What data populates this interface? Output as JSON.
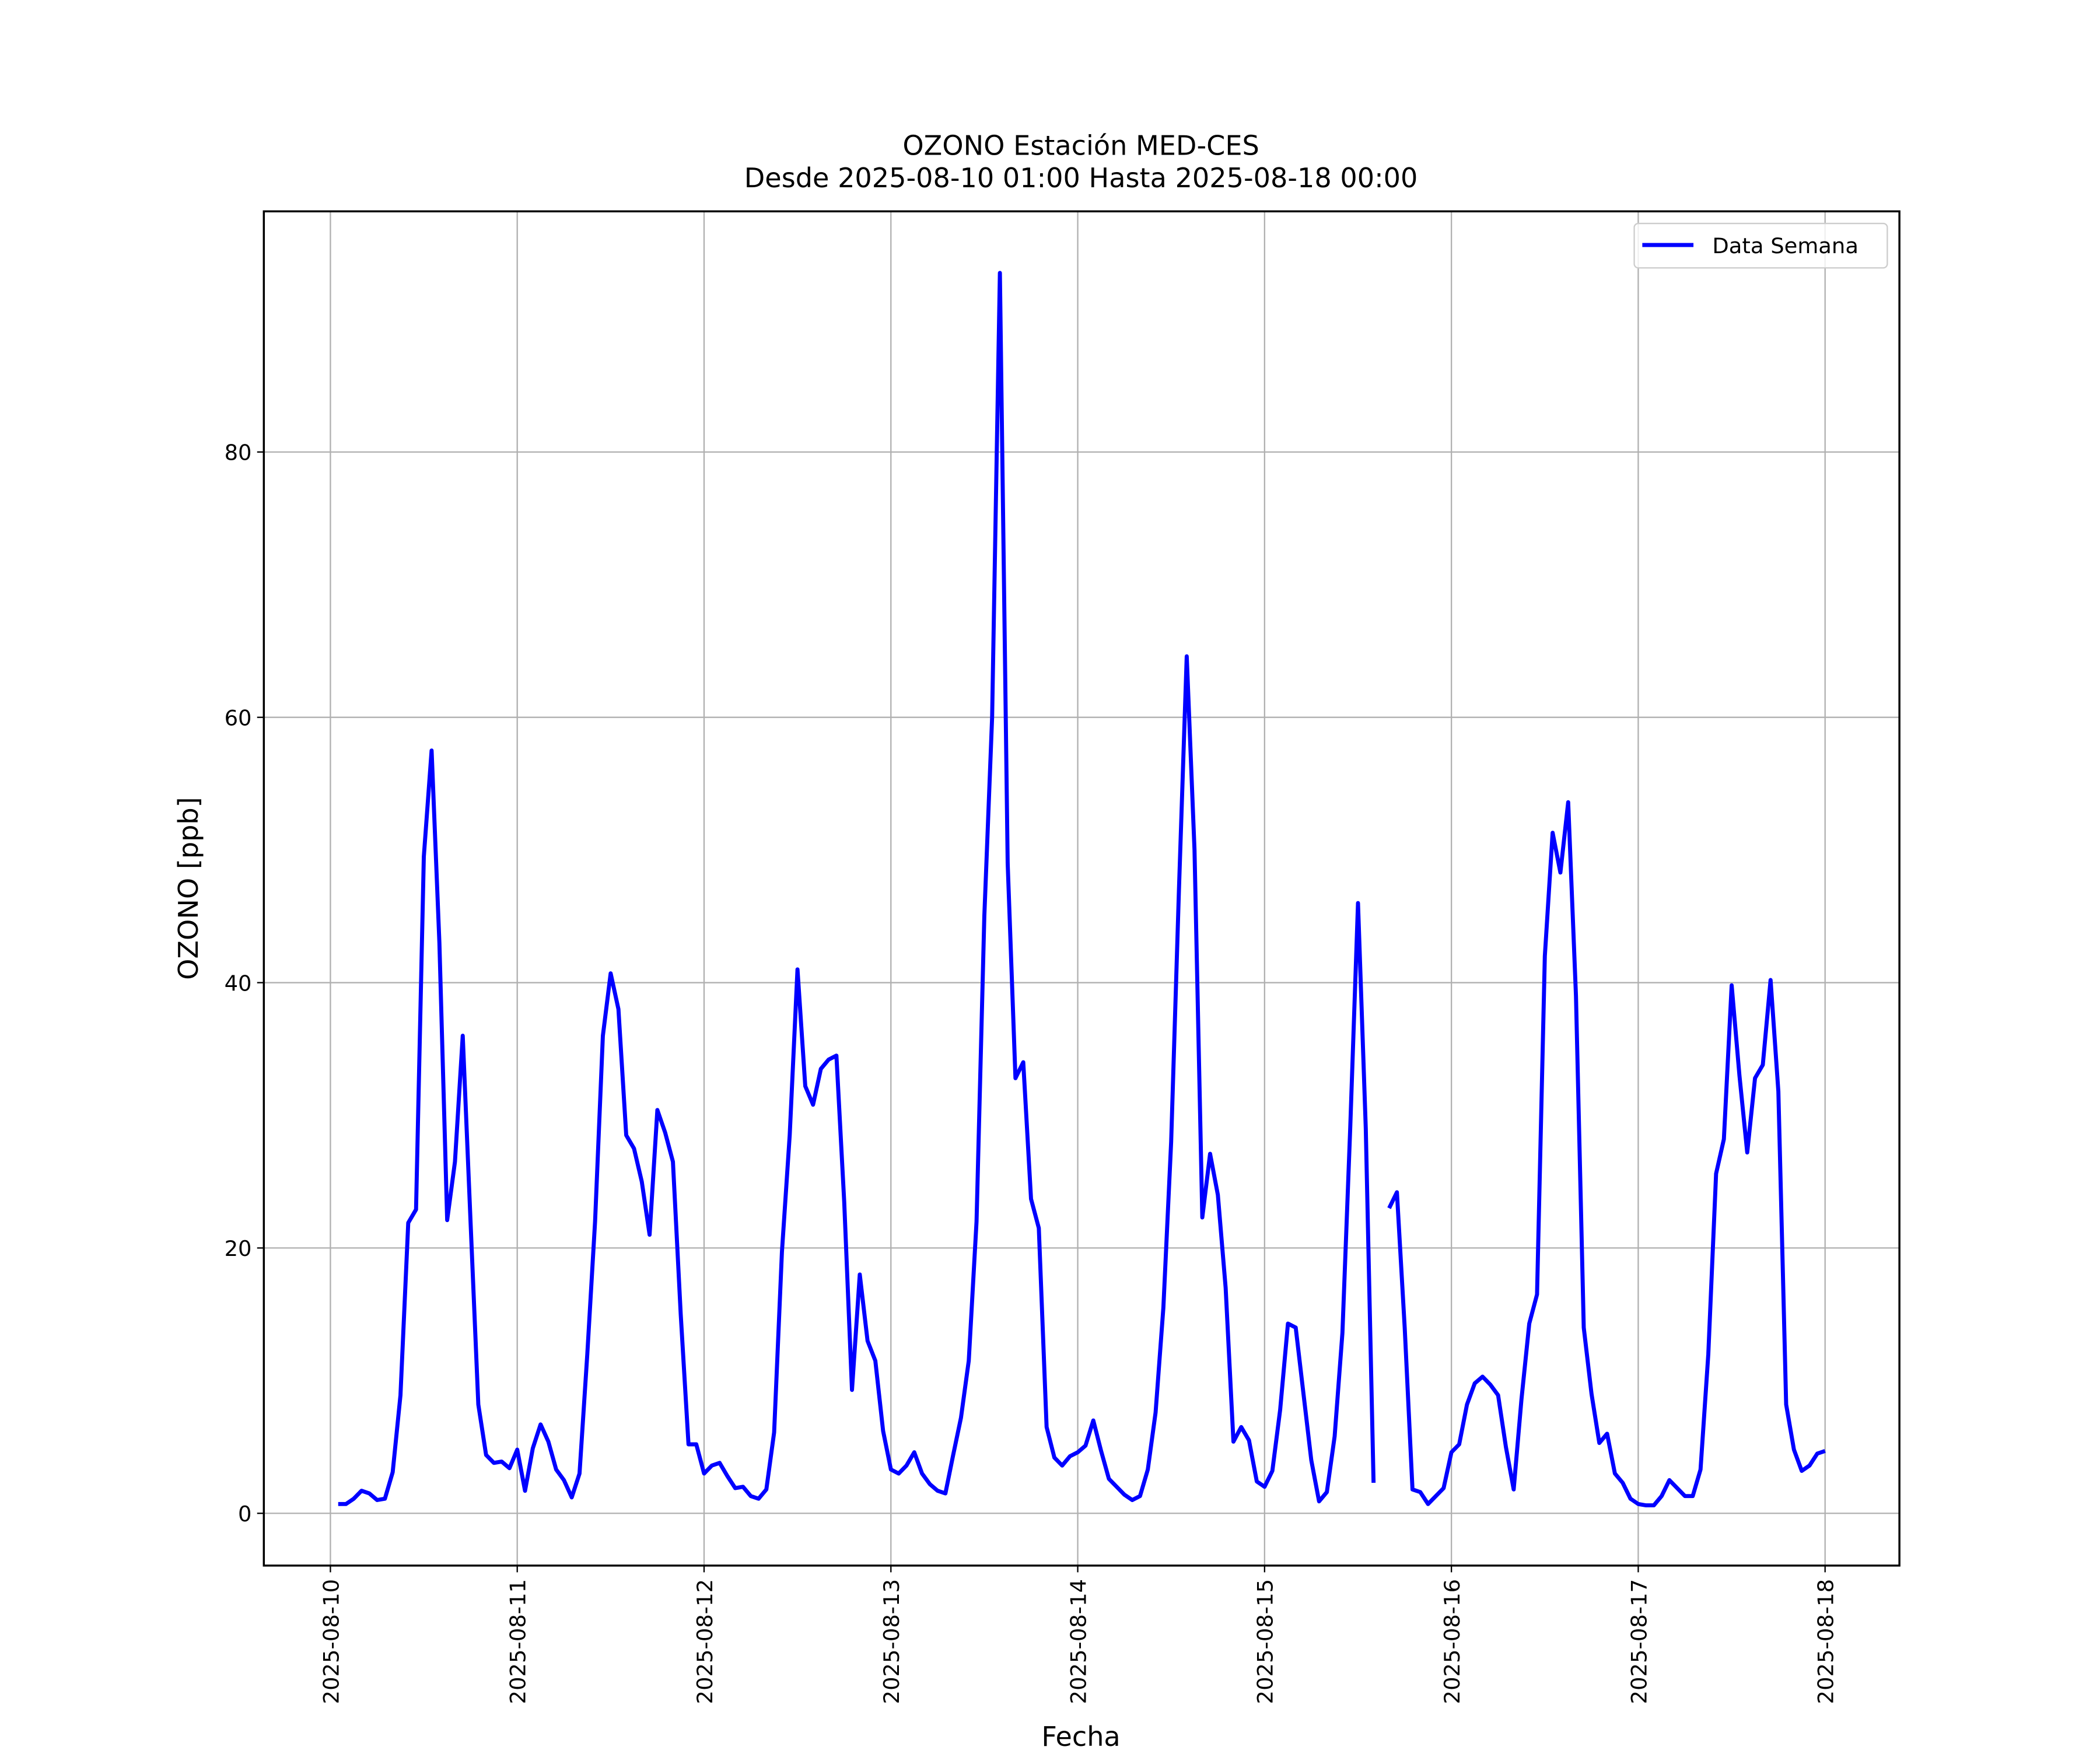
{
  "chart_data": {
    "type": "line",
    "title": "OZONO Estación MED-CES",
    "subtitle": "Desde 2025-08-10 01:00 Hasta 2025-08-18 00:00",
    "xlabel": "Fecha",
    "ylabel": "OZONO [ppb]",
    "x": [
      "2025-08-10 01:00",
      "2025-08-10 02:00",
      "2025-08-10 03:00",
      "2025-08-10 04:00",
      "2025-08-10 05:00",
      "2025-08-10 06:00",
      "2025-08-10 07:00",
      "2025-08-10 08:00",
      "2025-08-10 09:00",
      "2025-08-10 10:00",
      "2025-08-10 11:00",
      "2025-08-10 12:00",
      "2025-08-10 13:00",
      "2025-08-10 14:00",
      "2025-08-10 15:00",
      "2025-08-10 16:00",
      "2025-08-10 17:00",
      "2025-08-10 18:00",
      "2025-08-10 19:00",
      "2025-08-10 20:00",
      "2025-08-10 21:00",
      "2025-08-10 22:00",
      "2025-08-10 23:00",
      "2025-08-11 00:00",
      "2025-08-11 01:00",
      "2025-08-11 02:00",
      "2025-08-11 03:00",
      "2025-08-11 04:00",
      "2025-08-11 05:00",
      "2025-08-11 06:00",
      "2025-08-11 07:00",
      "2025-08-11 08:00",
      "2025-08-11 09:00",
      "2025-08-11 10:00",
      "2025-08-11 11:00",
      "2025-08-11 12:00",
      "2025-08-11 13:00",
      "2025-08-11 14:00",
      "2025-08-11 15:00",
      "2025-08-11 16:00",
      "2025-08-11 17:00",
      "2025-08-11 18:00",
      "2025-08-11 19:00",
      "2025-08-11 20:00",
      "2025-08-11 21:00",
      "2025-08-11 22:00",
      "2025-08-11 23:00",
      "2025-08-12 00:00",
      "2025-08-12 01:00",
      "2025-08-12 02:00",
      "2025-08-12 03:00",
      "2025-08-12 04:00",
      "2025-08-12 05:00",
      "2025-08-12 06:00",
      "2025-08-12 07:00",
      "2025-08-12 08:00",
      "2025-08-12 09:00",
      "2025-08-12 10:00",
      "2025-08-12 11:00",
      "2025-08-12 12:00",
      "2025-08-12 13:00",
      "2025-08-12 14:00",
      "2025-08-12 15:00",
      "2025-08-12 16:00",
      "2025-08-12 17:00",
      "2025-08-12 18:00",
      "2025-08-12 19:00",
      "2025-08-12 20:00",
      "2025-08-12 21:00",
      "2025-08-12 22:00",
      "2025-08-12 23:00",
      "2025-08-13 00:00",
      "2025-08-13 01:00",
      "2025-08-13 02:00",
      "2025-08-13 03:00",
      "2025-08-13 04:00",
      "2025-08-13 05:00",
      "2025-08-13 06:00",
      "2025-08-13 07:00",
      "2025-08-13 08:00",
      "2025-08-13 09:00",
      "2025-08-13 10:00",
      "2025-08-13 11:00",
      "2025-08-13 12:00",
      "2025-08-13 13:00",
      "2025-08-13 14:00",
      "2025-08-13 15:00",
      "2025-08-13 16:00",
      "2025-08-13 17:00",
      "2025-08-13 18:00",
      "2025-08-13 19:00",
      "2025-08-13 20:00",
      "2025-08-13 21:00",
      "2025-08-13 22:00",
      "2025-08-13 23:00",
      "2025-08-14 00:00",
      "2025-08-14 01:00",
      "2025-08-14 02:00",
      "2025-08-14 03:00",
      "2025-08-14 04:00",
      "2025-08-14 05:00",
      "2025-08-14 06:00",
      "2025-08-14 07:00",
      "2025-08-14 08:00",
      "2025-08-14 09:00",
      "2025-08-14 10:00",
      "2025-08-14 11:00",
      "2025-08-14 12:00",
      "2025-08-14 13:00",
      "2025-08-14 14:00",
      "2025-08-14 15:00",
      "2025-08-14 16:00",
      "2025-08-14 17:00",
      "2025-08-14 18:00",
      "2025-08-14 19:00",
      "2025-08-14 20:00",
      "2025-08-14 21:00",
      "2025-08-14 22:00",
      "2025-08-14 23:00",
      "2025-08-15 00:00",
      "2025-08-15 01:00",
      "2025-08-15 02:00",
      "2025-08-15 03:00",
      "2025-08-15 04:00",
      "2025-08-15 05:00",
      "2025-08-15 06:00",
      "2025-08-15 07:00",
      "2025-08-15 08:00",
      "2025-08-15 09:00",
      "2025-08-15 10:00",
      "2025-08-15 11:00",
      "2025-08-15 12:00",
      "2025-08-15 13:00",
      "2025-08-15 14:00",
      "2025-08-15 15:00",
      "2025-08-15 16:00",
      "2025-08-15 17:00",
      "2025-08-15 18:00",
      "2025-08-15 19:00",
      "2025-08-15 20:00",
      "2025-08-15 21:00",
      "2025-08-15 22:00",
      "2025-08-15 23:00",
      "2025-08-16 00:00",
      "2025-08-16 01:00",
      "2025-08-16 02:00",
      "2025-08-16 03:00",
      "2025-08-16 04:00",
      "2025-08-16 05:00",
      "2025-08-16 06:00",
      "2025-08-16 07:00",
      "2025-08-16 08:00",
      "2025-08-16 09:00",
      "2025-08-16 10:00",
      "2025-08-16 11:00",
      "2025-08-16 12:00",
      "2025-08-16 13:00",
      "2025-08-16 14:00",
      "2025-08-16 15:00",
      "2025-08-16 16:00",
      "2025-08-16 17:00",
      "2025-08-16 18:00",
      "2025-08-16 19:00",
      "2025-08-16 20:00",
      "2025-08-16 21:00",
      "2025-08-16 22:00",
      "2025-08-16 23:00",
      "2025-08-17 00:00",
      "2025-08-17 01:00",
      "2025-08-17 02:00",
      "2025-08-17 03:00",
      "2025-08-17 04:00",
      "2025-08-17 05:00",
      "2025-08-17 06:00",
      "2025-08-17 07:00",
      "2025-08-17 08:00",
      "2025-08-17 09:00",
      "2025-08-17 10:00",
      "2025-08-17 11:00",
      "2025-08-17 12:00",
      "2025-08-17 13:00",
      "2025-08-17 14:00",
      "2025-08-17 15:00",
      "2025-08-17 16:00",
      "2025-08-17 17:00",
      "2025-08-17 18:00",
      "2025-08-17 19:00",
      "2025-08-17 20:00",
      "2025-08-17 21:00",
      "2025-08-17 22:00",
      "2025-08-17 23:00",
      "2025-08-18 00:00"
    ],
    "series": [
      {
        "name": "Data Semana",
        "color": "#0000ff",
        "values": [
          0.7,
          0.7,
          1.1,
          1.7,
          1.5,
          1.0,
          1.1,
          3.1,
          8.9,
          21.9,
          22.9,
          49.5,
          57.5,
          43.0,
          22.1,
          26.5,
          36.0,
          22.0,
          8.2,
          4.4,
          3.8,
          3.9,
          3.4,
          4.8,
          1.7,
          4.9,
          6.7,
          5.4,
          3.3,
          2.5,
          1.2,
          3.0,
          12.0,
          22.0,
          36.0,
          40.7,
          38.0,
          28.5,
          27.5,
          25.0,
          21.0,
          30.4,
          28.7,
          26.5,
          15.0,
          5.2,
          5.2,
          3.0,
          3.6,
          3.8,
          2.8,
          1.9,
          2.0,
          1.3,
          1.1,
          1.8,
          6.1,
          19.7,
          28.5,
          41.0,
          32.2,
          30.8,
          33.5,
          34.2,
          34.5,
          23.5,
          9.3,
          18.0,
          13.0,
          11.5,
          6.2,
          3.3,
          3.0,
          3.6,
          4.6,
          3.0,
          2.2,
          1.7,
          1.5,
          4.4,
          7.2,
          11.5,
          22.0,
          45.0,
          60.0,
          93.5,
          49.0,
          32.8,
          34.0,
          23.7,
          21.5,
          6.5,
          4.2,
          3.6,
          4.3,
          4.6,
          5.1,
          7.0,
          4.7,
          2.6,
          2.0,
          1.4,
          1.0,
          1.3,
          3.3,
          7.6,
          15.5,
          28.0,
          47.0,
          64.6,
          50.0,
          22.3,
          27.1,
          24.0,
          17.0,
          5.4,
          6.5,
          5.5,
          2.4,
          2.0,
          3.2,
          7.8,
          14.3,
          14.0,
          9.0,
          4.0,
          0.9,
          1.6,
          5.8,
          13.6,
          29.0,
          46.0,
          29.0,
          2.3,
          null,
          23.0,
          24.2,
          14.0,
          1.8,
          1.6,
          0.7,
          1.3,
          1.9,
          4.6,
          5.2,
          8.2,
          9.8,
          10.3,
          9.7,
          8.9,
          5.0,
          1.8,
          8.6,
          14.3,
          16.5,
          42.0,
          51.3,
          48.3,
          53.6,
          39.0,
          14.0,
          9.0,
          5.3,
          6.0,
          3.0,
          2.3,
          1.1,
          0.7,
          0.6,
          0.6,
          1.3,
          2.5,
          1.9,
          1.3,
          1.3,
          3.3,
          12.0,
          25.6,
          28.2,
          39.8,
          33.0,
          27.2,
          32.8,
          33.8,
          40.2,
          31.8,
          8.2,
          4.8,
          3.2,
          3.6,
          4.5,
          4.7
        ]
      }
    ],
    "xlim": [
      "2025-08-09 15:27",
      "2025-08-18 09:33"
    ],
    "xticks": [
      "2025-08-10",
      "2025-08-11",
      "2025-08-12",
      "2025-08-13",
      "2025-08-14",
      "2025-08-15",
      "2025-08-16",
      "2025-08-17",
      "2025-08-18"
    ],
    "ylim": [
      -3.94,
      98.14
    ],
    "yticks": [
      0,
      20,
      40,
      60,
      80
    ],
    "grid": true,
    "legend": "upper right"
  }
}
